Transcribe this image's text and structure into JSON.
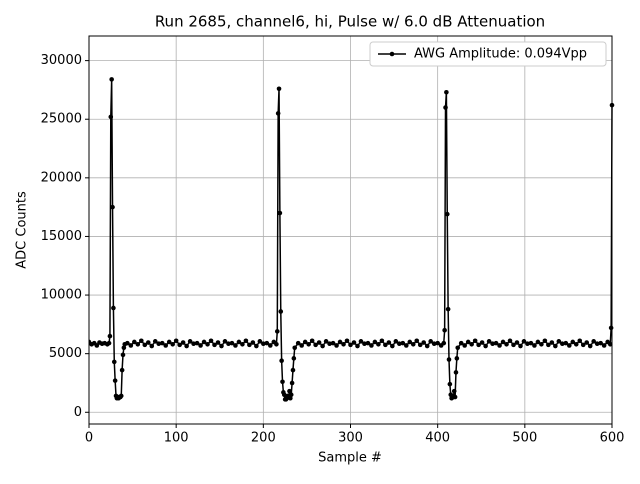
{
  "chart_data": {
    "type": "line",
    "title": "Run 2685, channel6, hi, Pulse w/ 6.0 dB Attenuation",
    "x_label": "Sample #",
    "y_label": "ADC Counts",
    "x": [
      0,
      3,
      6,
      9,
      12,
      15,
      18,
      21,
      23,
      24,
      25,
      26,
      27,
      28,
      29,
      30,
      31,
      32,
      33,
      34,
      35,
      36,
      37,
      38,
      39,
      40,
      41,
      44,
      48,
      52,
      56,
      60,
      64,
      68,
      72,
      76,
      80,
      84,
      88,
      92,
      96,
      100,
      104,
      108,
      112,
      116,
      120,
      124,
      128,
      132,
      136,
      140,
      144,
      148,
      152,
      156,
      160,
      164,
      168,
      172,
      176,
      180,
      184,
      188,
      192,
      196,
      200,
      204,
      208,
      212,
      215,
      216,
      217,
      218,
      219,
      220,
      221,
      222,
      223,
      224,
      225,
      226,
      227,
      228,
      229,
      230,
      231,
      232,
      233,
      234,
      235,
      236,
      240,
      244,
      248,
      252,
      256,
      260,
      264,
      268,
      272,
      276,
      280,
      284,
      288,
      292,
      296,
      300,
      304,
      308,
      312,
      316,
      320,
      324,
      328,
      332,
      336,
      340,
      344,
      348,
      352,
      356,
      360,
      364,
      368,
      372,
      376,
      380,
      384,
      388,
      392,
      396,
      400,
      404,
      407,
      408,
      409,
      410,
      411,
      412,
      413,
      414,
      415,
      416,
      417,
      418,
      419,
      420,
      421,
      422,
      423,
      427,
      431,
      435,
      439,
      443,
      447,
      451,
      455,
      459,
      463,
      467,
      471,
      475,
      479,
      483,
      487,
      491,
      495,
      499,
      503,
      507,
      511,
      515,
      519,
      523,
      527,
      531,
      535,
      539,
      543,
      547,
      551,
      555,
      559,
      563,
      567,
      571,
      575,
      579,
      583,
      587,
      591,
      595,
      598,
      599,
      600
    ],
    "series": [
      {
        "name": "AWG Amplitude: 0.094Vpp",
        "color": "#000000",
        "values": [
          6000,
          5800,
          5900,
          5700,
          5950,
          5850,
          5900,
          5800,
          5900,
          6500,
          25200,
          28400,
          17500,
          8900,
          4300,
          2700,
          1400,
          1200,
          1300,
          1200,
          1300,
          1300,
          1400,
          3600,
          4900,
          5500,
          5800,
          5900,
          5700,
          6000,
          5800,
          6100,
          5750,
          5950,
          5650,
          6050,
          5850,
          5900,
          5700,
          6000,
          5800,
          6100,
          5750,
          5950,
          5650,
          6050,
          5850,
          5900,
          5700,
          6000,
          5800,
          6100,
          5750,
          5950,
          5650,
          6050,
          5850,
          5900,
          5700,
          6000,
          5800,
          6100,
          5750,
          5950,
          5650,
          6050,
          5850,
          5900,
          5700,
          6000,
          5800,
          6900,
          25500,
          27600,
          17000,
          8600,
          4400,
          2600,
          1700,
          1500,
          1100,
          1100,
          1200,
          1400,
          1300,
          1800,
          1200,
          1500,
          2500,
          3600,
          4600,
          5500,
          5900,
          5700,
          6000,
          5800,
          6100,
          5750,
          5950,
          5650,
          6050,
          5850,
          5900,
          5700,
          6000,
          5800,
          6100,
          5750,
          5950,
          5650,
          6050,
          5850,
          5900,
          5700,
          6000,
          5800,
          6100,
          5750,
          5950,
          5650,
          6050,
          5850,
          5900,
          5700,
          6000,
          5800,
          6100,
          5750,
          5950,
          5650,
          6050,
          5850,
          5900,
          5700,
          5900,
          7000,
          26000,
          27300,
          16900,
          8800,
          4500,
          2400,
          1500,
          1200,
          1400,
          1300,
          1800,
          1300,
          3400,
          4600,
          5500,
          5900,
          5700,
          6000,
          5800,
          6100,
          5750,
          5950,
          5650,
          6050,
          5850,
          5900,
          5700,
          6000,
          5800,
          6100,
          5750,
          5950,
          5650,
          6050,
          5850,
          5900,
          5700,
          6000,
          5800,
          6100,
          5750,
          5950,
          5650,
          6050,
          5850,
          5900,
          5700,
          6000,
          5800,
          6100,
          5750,
          5950,
          5650,
          6050,
          5850,
          5900,
          5700,
          6000,
          5800,
          7200,
          26200
        ]
      }
    ],
    "xlim": [
      0,
      600
    ],
    "xticks": [
      0,
      100,
      200,
      300,
      400,
      500,
      600
    ],
    "ylim": [
      -1000,
      32100
    ],
    "yticks": [
      0,
      5000,
      10000,
      15000,
      20000,
      25000,
      30000
    ],
    "grid": true,
    "legend": "upper right"
  }
}
